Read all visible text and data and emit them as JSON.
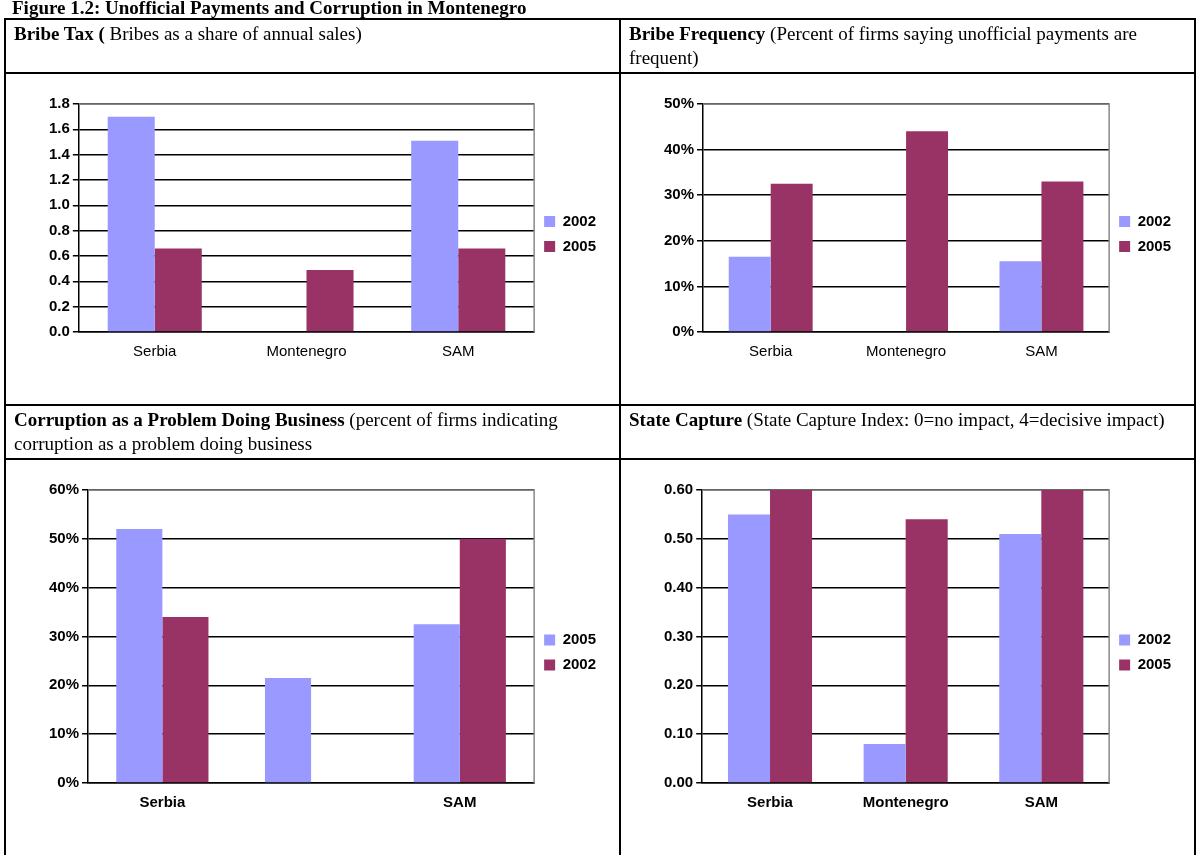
{
  "chart_data": [
    {
      "type": "bar",
      "title": "Bribe Tax (",
      "subtitle": "Bribes as a share of annual sales)",
      "annotations": [
        "Figure 1.2: Unofficial Payments and Corruption in Montenegro"
      ],
      "categories": [
        "Serbia",
        "Montenegro",
        "SAM"
      ],
      "series": [
        {
          "name": "2002",
          "color": "#9999ff",
          "values": [
            1.7,
            0,
            1.51
          ]
        },
        {
          "name": "2005",
          "color": "#993366",
          "values": [
            0.66,
            0.49,
            0.66
          ]
        }
      ],
      "ylim": [
        0,
        1.8
      ],
      "yticks": [
        {
          "value": 0,
          "label": "0.0"
        },
        {
          "value": 0.2,
          "label": "0.2"
        },
        {
          "value": 0.4,
          "label": "0.4"
        },
        {
          "value": 0.6,
          "label": "0.6"
        },
        {
          "value": 0.8,
          "label": "0.8"
        },
        {
          "value": 1,
          "label": "1.0"
        },
        {
          "value": 1.2,
          "label": "1.2"
        },
        {
          "value": 1.4,
          "label": "1.4"
        },
        {
          "value": 1.6,
          "label": "1.6"
        },
        {
          "value": 1.8,
          "label": "1.8"
        }
      ],
      "grid": "y",
      "legend": "right"
    },
    {
      "type": "bar",
      "title": "Bribe Frequency",
      "subtitle": "(Percent of firms saying unofficial payments are frequent)",
      "categories": [
        "Serbia",
        "Montenegro",
        "SAM"
      ],
      "series": [
        {
          "name": "2002",
          "color": "#9999ff",
          "values": [
            16.5,
            0,
            15.5
          ]
        },
        {
          "name": "2005",
          "color": "#993366",
          "values": [
            32.5,
            44,
            33
          ]
        }
      ],
      "ylim": [
        0,
        50
      ],
      "yticks": [
        {
          "value": 0,
          "label": "0%"
        },
        {
          "value": 10,
          "label": "10%"
        },
        {
          "value": 20,
          "label": "20%"
        },
        {
          "value": 30,
          "label": "30%"
        },
        {
          "value": 40,
          "label": "40%"
        },
        {
          "value": 50,
          "label": "50%"
        }
      ],
      "grid": "y",
      "legend": "right"
    },
    {
      "type": "bar",
      "title": "Corruption as a Problem Doing Business",
      "subtitle": "(percent of firms indicating corruption as a problem doing business",
      "categories": [
        "Serbia",
        null,
        "SAM"
      ],
      "series": [
        {
          "name": "2005",
          "color": "#9999ff",
          "values": [
            52,
            21.5,
            32.5
          ]
        },
        {
          "name": "2002",
          "color": "#993366",
          "values": [
            34,
            0,
            50
          ]
        }
      ],
      "ylim": [
        0,
        60
      ],
      "yticks": [
        {
          "value": 0,
          "label": "0%"
        },
        {
          "value": 10,
          "label": "10%"
        },
        {
          "value": 20,
          "label": "20%"
        },
        {
          "value": 30,
          "label": "30%"
        },
        {
          "value": 40,
          "label": "40%"
        },
        {
          "value": 50,
          "label": "50%"
        },
        {
          "value": 60,
          "label": "60%"
        }
      ],
      "grid": "y",
      "legend": "right"
    },
    {
      "type": "bar",
      "title": "State Capture",
      "subtitle": "(State Capture Index: 0=no impact, 4=decisive impact)",
      "categories": [
        "Serbia",
        "Montenegro",
        "SAM"
      ],
      "series": [
        {
          "name": "2002",
          "color": "#9999ff",
          "values": [
            0.55,
            0.08,
            0.51
          ]
        },
        {
          "name": "2005",
          "color": "#993366",
          "values": [
            0.6,
            0.54,
            0.6
          ]
        }
      ],
      "ylim": [
        0,
        0.6
      ],
      "yticks": [
        {
          "value": 0,
          "label": "0.00"
        },
        {
          "value": 0.1,
          "label": "0.10"
        },
        {
          "value": 0.2,
          "label": "0.20"
        },
        {
          "value": 0.3,
          "label": "0.30"
        },
        {
          "value": 0.4,
          "label": "0.40"
        },
        {
          "value": 0.5,
          "label": "0.50"
        },
        {
          "value": 0.6,
          "label": "0.60"
        }
      ],
      "grid": "y",
      "legend": "right"
    }
  ]
}
